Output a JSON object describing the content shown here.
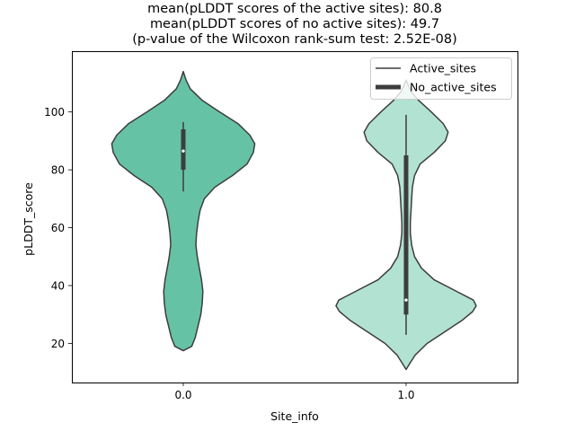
{
  "chart_data": {
    "type": "violin",
    "title": [
      "mean(pLDDT scores of the active sites): 80.8",
      "mean(pLDDT scores of no active sites): 49.7",
      "(p-value of the Wilcoxon rank-sum test: 2.52E-08)"
    ],
    "xlabel": "Site_info",
    "ylabel": "pLDDT_score",
    "categories": [
      "0.0",
      "1.0"
    ],
    "ylim": [
      6.5,
      121
    ],
    "yticks": [
      "20",
      "40",
      "60",
      "80",
      "100"
    ],
    "legend": {
      "position": "top-right",
      "entries": [
        "Active_sites",
        "No_active_sites"
      ]
    },
    "colors": {
      "active": "#66c2a5",
      "no_active": "#b2e2d2",
      "edge": "#3d3d3d",
      "axis": "#000000",
      "median_dot": "#ffffff"
    },
    "violins": [
      {
        "category": "0.0",
        "label": "Active_sites",
        "color_key": "active",
        "ymin": 17.5,
        "ymax": 114,
        "q1": 80,
        "median": 86.5,
        "q3": 94,
        "whisker_low": 72.5,
        "whisker_high": 96.5,
        "density_profile": [
          [
            17.5,
            0.0
          ],
          [
            19,
            0.12
          ],
          [
            22,
            0.17
          ],
          [
            26,
            0.21
          ],
          [
            30,
            0.25
          ],
          [
            34,
            0.27
          ],
          [
            38,
            0.28
          ],
          [
            42,
            0.26
          ],
          [
            46,
            0.23
          ],
          [
            50,
            0.2
          ],
          [
            54,
            0.18
          ],
          [
            58,
            0.19
          ],
          [
            62,
            0.21
          ],
          [
            66,
            0.24
          ],
          [
            70,
            0.3
          ],
          [
            74,
            0.45
          ],
          [
            78,
            0.7
          ],
          [
            82,
            0.91
          ],
          [
            86,
            1.0
          ],
          [
            89,
            1.02
          ],
          [
            92,
            0.95
          ],
          [
            96,
            0.78
          ],
          [
            100,
            0.52
          ],
          [
            104,
            0.27
          ],
          [
            108,
            0.1
          ],
          [
            111,
            0.04
          ],
          [
            114,
            0.0
          ]
        ]
      },
      {
        "category": "1.0",
        "label": "No_active_sites",
        "color_key": "no_active",
        "ymin": 11,
        "ymax": 111,
        "q1": 30,
        "median": 35,
        "q3": 85,
        "whisker_low": 23,
        "whisker_high": 99,
        "density_profile": [
          [
            11,
            0.0
          ],
          [
            13,
            0.05
          ],
          [
            16,
            0.13
          ],
          [
            20,
            0.3
          ],
          [
            24,
            0.55
          ],
          [
            28,
            0.8
          ],
          [
            31,
            0.95
          ],
          [
            33,
            1.0
          ],
          [
            35,
            0.96
          ],
          [
            38,
            0.72
          ],
          [
            42,
            0.4
          ],
          [
            46,
            0.22
          ],
          [
            50,
            0.12
          ],
          [
            54,
            0.08
          ],
          [
            58,
            0.06
          ],
          [
            62,
            0.06
          ],
          [
            66,
            0.07
          ],
          [
            70,
            0.08
          ],
          [
            74,
            0.09
          ],
          [
            78,
            0.12
          ],
          [
            82,
            0.2
          ],
          [
            86,
            0.4
          ],
          [
            90,
            0.56
          ],
          [
            93,
            0.6
          ],
          [
            96,
            0.53
          ],
          [
            100,
            0.36
          ],
          [
            104,
            0.18
          ],
          [
            107,
            0.07
          ],
          [
            111,
            0.0
          ]
        ]
      }
    ]
  }
}
